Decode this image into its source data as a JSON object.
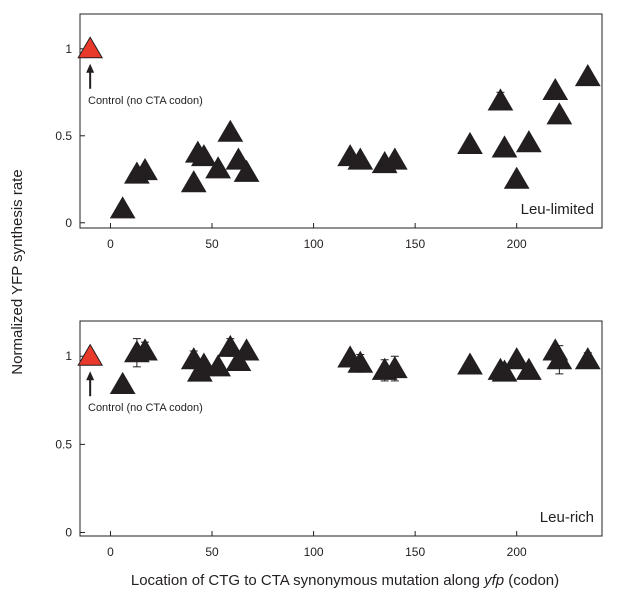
{
  "figure": {
    "ylabel": "Normalized YFP synthesis rate",
    "xlabel_parts": [
      "Location of CTG  to CTA synonymous mutation along ",
      "yfp",
      " (codon)"
    ]
  },
  "chart_data": [
    {
      "type": "scatter",
      "panel_label": "Leu-limited",
      "xlim": [
        -15,
        242
      ],
      "ylim": [
        -0.03,
        1.2
      ],
      "xticks": [
        0,
        50,
        100,
        150,
        200
      ],
      "yticks": [
        0,
        0.5,
        1
      ],
      "ytick_labels": [
        "0",
        "0.5",
        "1"
      ],
      "control": {
        "x": -10,
        "y": 1.0,
        "color": "#e8392a",
        "label": "Control (no CTA codon)"
      },
      "marker_color": "#231f20",
      "points": [
        {
          "x": 6,
          "y": 0.08,
          "err": 0
        },
        {
          "x": 13,
          "y": 0.28,
          "err": 0.01
        },
        {
          "x": 17,
          "y": 0.3,
          "err": 0
        },
        {
          "x": 41,
          "y": 0.23,
          "err": 0
        },
        {
          "x": 43,
          "y": 0.4,
          "err": 0.02
        },
        {
          "x": 46,
          "y": 0.38,
          "err": 0
        },
        {
          "x": 53,
          "y": 0.31,
          "err": 0
        },
        {
          "x": 59,
          "y": 0.52,
          "err": 0.01
        },
        {
          "x": 63,
          "y": 0.36,
          "err": 0
        },
        {
          "x": 67,
          "y": 0.29,
          "err": 0
        },
        {
          "x": 118,
          "y": 0.38,
          "err": 0.01
        },
        {
          "x": 123,
          "y": 0.36,
          "err": 0
        },
        {
          "x": 135,
          "y": 0.34,
          "err": 0
        },
        {
          "x": 140,
          "y": 0.36,
          "err": 0.01
        },
        {
          "x": 177,
          "y": 0.45,
          "err": 0
        },
        {
          "x": 192,
          "y": 0.7,
          "err": 0.05
        },
        {
          "x": 194,
          "y": 0.43,
          "err": 0.02
        },
        {
          "x": 200,
          "y": 0.25,
          "err": 0
        },
        {
          "x": 206,
          "y": 0.46,
          "err": 0
        },
        {
          "x": 219,
          "y": 0.76,
          "err": 0
        },
        {
          "x": 221,
          "y": 0.62,
          "err": 0
        },
        {
          "x": 235,
          "y": 0.84,
          "err": 0
        }
      ]
    },
    {
      "type": "scatter",
      "panel_label": "Leu-rich",
      "xlim": [
        -15,
        242
      ],
      "ylim": [
        -0.02,
        1.2
      ],
      "xticks": [
        0,
        50,
        100,
        150,
        200
      ],
      "yticks": [
        0,
        0.5,
        1
      ],
      "ytick_labels": [
        "0",
        "0.5",
        "1"
      ],
      "control": {
        "x": -10,
        "y": 1.0,
        "color": "#e8392a",
        "label": "Control (no CTA codon)"
      },
      "marker_color": "#231f20",
      "points": [
        {
          "x": 6,
          "y": 0.84,
          "err": 0.02
        },
        {
          "x": 13,
          "y": 1.02,
          "err": 0.08
        },
        {
          "x": 17,
          "y": 1.03,
          "err": 0.05
        },
        {
          "x": 41,
          "y": 0.98,
          "err": 0.05
        },
        {
          "x": 44,
          "y": 0.91,
          "err": 0.05
        },
        {
          "x": 46,
          "y": 0.95,
          "err": 0.03
        },
        {
          "x": 53,
          "y": 0.94,
          "err": 0.02
        },
        {
          "x": 59,
          "y": 1.05,
          "err": 0.05
        },
        {
          "x": 63,
          "y": 0.97,
          "err": 0.05
        },
        {
          "x": 67,
          "y": 1.03,
          "err": 0.02
        },
        {
          "x": 118,
          "y": 0.99,
          "err": 0.03
        },
        {
          "x": 123,
          "y": 0.96,
          "err": 0.05
        },
        {
          "x": 135,
          "y": 0.92,
          "err": 0.06
        },
        {
          "x": 140,
          "y": 0.93,
          "err": 0.07
        },
        {
          "x": 177,
          "y": 0.95,
          "err": 0.02
        },
        {
          "x": 192,
          "y": 0.92,
          "err": 0.02
        },
        {
          "x": 194,
          "y": 0.91,
          "err": 0.03
        },
        {
          "x": 200,
          "y": 0.98,
          "err": 0.03
        },
        {
          "x": 206,
          "y": 0.92,
          "err": 0.03
        },
        {
          "x": 219,
          "y": 1.03,
          "err": 0.03
        },
        {
          "x": 221,
          "y": 0.98,
          "err": 0.08
        },
        {
          "x": 235,
          "y": 0.98,
          "err": 0.04
        }
      ]
    }
  ]
}
